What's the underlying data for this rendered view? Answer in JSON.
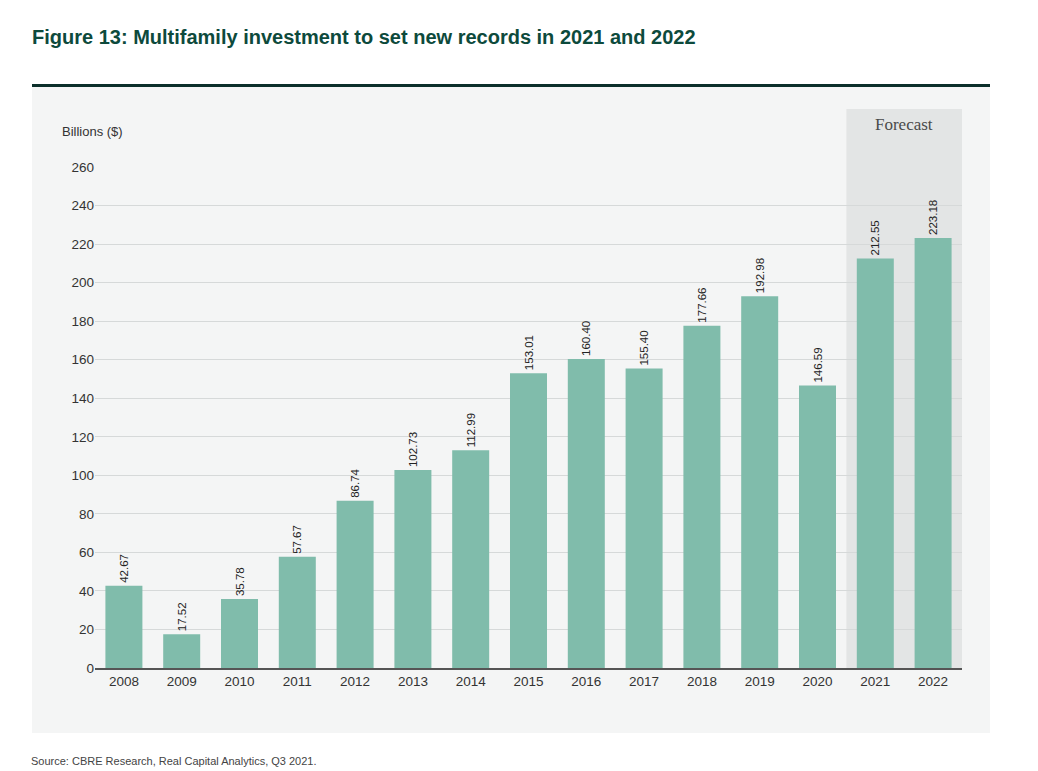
{
  "chart_data": {
    "type": "bar",
    "title": "Figure 13: Multifamily investment to set new records in 2021 and 2022",
    "ylabel": "Billions ($)",
    "source": "Source: CBRE Research, Real Capital Analytics, Q3 2021.",
    "categories": [
      "2008",
      "2009",
      "2010",
      "2011",
      "2012",
      "2013",
      "2014",
      "2015",
      "2016",
      "2017",
      "2018",
      "2019",
      "2020",
      "2021",
      "2022"
    ],
    "values": [
      42.67,
      17.52,
      35.78,
      57.67,
      86.74,
      102.73,
      112.99,
      153.01,
      160.4,
      155.4,
      177.66,
      192.98,
      146.59,
      212.55,
      223.18
    ],
    "value_labels": [
      "42.67",
      "17.52",
      "35.78",
      "57.67",
      "86.74",
      "102.73",
      "112.99",
      "153.01",
      "160.40",
      "155.40",
      "177.66",
      "192.98",
      "146.59",
      "212.55",
      "223.18"
    ],
    "color": "#80bcab",
    "ylim": [
      0,
      260
    ],
    "yticks": [
      0,
      20,
      40,
      60,
      80,
      100,
      120,
      140,
      160,
      180,
      200,
      220,
      240,
      260
    ],
    "grid": true,
    "data_labels": true,
    "annotations": [
      {
        "text": "Forecast",
        "from": "2021",
        "to": "2022"
      }
    ]
  }
}
